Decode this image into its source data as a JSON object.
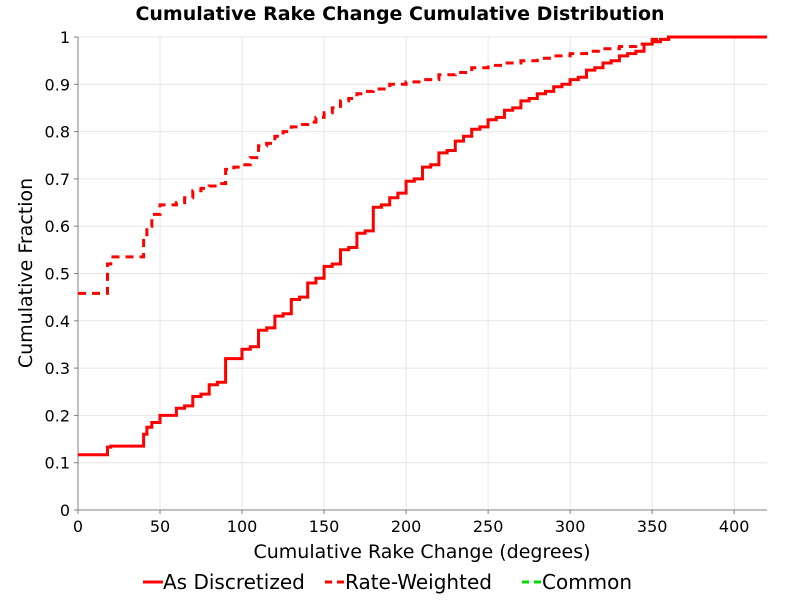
{
  "chart_data": {
    "type": "line",
    "title": "Cumulative Rake Change Cumulative Distribution",
    "xlabel": "Cumulative Rake Change (degrees)",
    "ylabel": "Cumulative Fraction",
    "xlim": [
      0,
      420
    ],
    "ylim": [
      0,
      1
    ],
    "x_ticks": [
      0,
      50,
      100,
      150,
      200,
      250,
      300,
      350,
      400
    ],
    "y_ticks": [
      0,
      0.1,
      0.2,
      0.3,
      0.4,
      0.5,
      0.6,
      0.7,
      0.8,
      0.9,
      1
    ],
    "grid": true,
    "legend_position": "bottom",
    "series": [
      {
        "name": "As Discretized",
        "color": "#ff0000",
        "dash": "solid",
        "x": [
          0,
          18,
          20,
          25,
          30,
          35,
          40,
          42,
          45,
          50,
          55,
          60,
          65,
          70,
          75,
          80,
          85,
          90,
          95,
          100,
          105,
          110,
          115,
          120,
          125,
          130,
          135,
          140,
          145,
          150,
          155,
          160,
          165,
          170,
          175,
          180,
          185,
          190,
          195,
          200,
          205,
          210,
          215,
          220,
          225,
          230,
          235,
          240,
          245,
          250,
          255,
          260,
          265,
          270,
          275,
          280,
          285,
          290,
          295,
          300,
          305,
          310,
          315,
          320,
          325,
          330,
          335,
          340,
          345,
          350,
          355,
          360,
          420
        ],
        "y": [
          0.117,
          0.133,
          0.135,
          0.135,
          0.135,
          0.135,
          0.16,
          0.175,
          0.185,
          0.2,
          0.2,
          0.215,
          0.22,
          0.24,
          0.245,
          0.265,
          0.27,
          0.32,
          0.32,
          0.34,
          0.345,
          0.38,
          0.385,
          0.41,
          0.415,
          0.445,
          0.45,
          0.48,
          0.49,
          0.515,
          0.52,
          0.55,
          0.555,
          0.585,
          0.59,
          0.64,
          0.645,
          0.66,
          0.67,
          0.695,
          0.7,
          0.725,
          0.73,
          0.755,
          0.76,
          0.78,
          0.79,
          0.805,
          0.81,
          0.825,
          0.83,
          0.845,
          0.85,
          0.865,
          0.87,
          0.88,
          0.885,
          0.895,
          0.9,
          0.91,
          0.915,
          0.93,
          0.935,
          0.945,
          0.95,
          0.96,
          0.965,
          0.97,
          0.985,
          0.99,
          0.995,
          1.0,
          1.0
        ]
      },
      {
        "name": "Rate-Weighted",
        "color": "#ff0000",
        "dash": "dashed",
        "x": [
          0,
          18,
          20,
          25,
          30,
          35,
          40,
          42,
          45,
          50,
          55,
          60,
          65,
          70,
          75,
          80,
          85,
          90,
          95,
          100,
          105,
          110,
          115,
          120,
          125,
          130,
          135,
          140,
          145,
          150,
          155,
          160,
          165,
          170,
          175,
          180,
          190,
          200,
          210,
          220,
          230,
          240,
          250,
          260,
          270,
          280,
          290,
          300,
          310,
          320,
          330,
          340,
          350,
          360,
          420
        ],
        "y": [
          0.458,
          0.52,
          0.535,
          0.535,
          0.535,
          0.535,
          0.57,
          0.6,
          0.625,
          0.645,
          0.645,
          0.65,
          0.66,
          0.675,
          0.68,
          0.685,
          0.69,
          0.72,
          0.725,
          0.73,
          0.745,
          0.77,
          0.775,
          0.79,
          0.8,
          0.81,
          0.815,
          0.82,
          0.83,
          0.84,
          0.85,
          0.865,
          0.87,
          0.88,
          0.885,
          0.89,
          0.9,
          0.905,
          0.91,
          0.92,
          0.925,
          0.935,
          0.94,
          0.945,
          0.95,
          0.955,
          0.96,
          0.965,
          0.97,
          0.975,
          0.98,
          0.985,
          0.995,
          1.0,
          1.0
        ]
      },
      {
        "name": "Common",
        "color": "#00dd00",
        "dash": "dashed",
        "x": [],
        "y": []
      }
    ]
  }
}
